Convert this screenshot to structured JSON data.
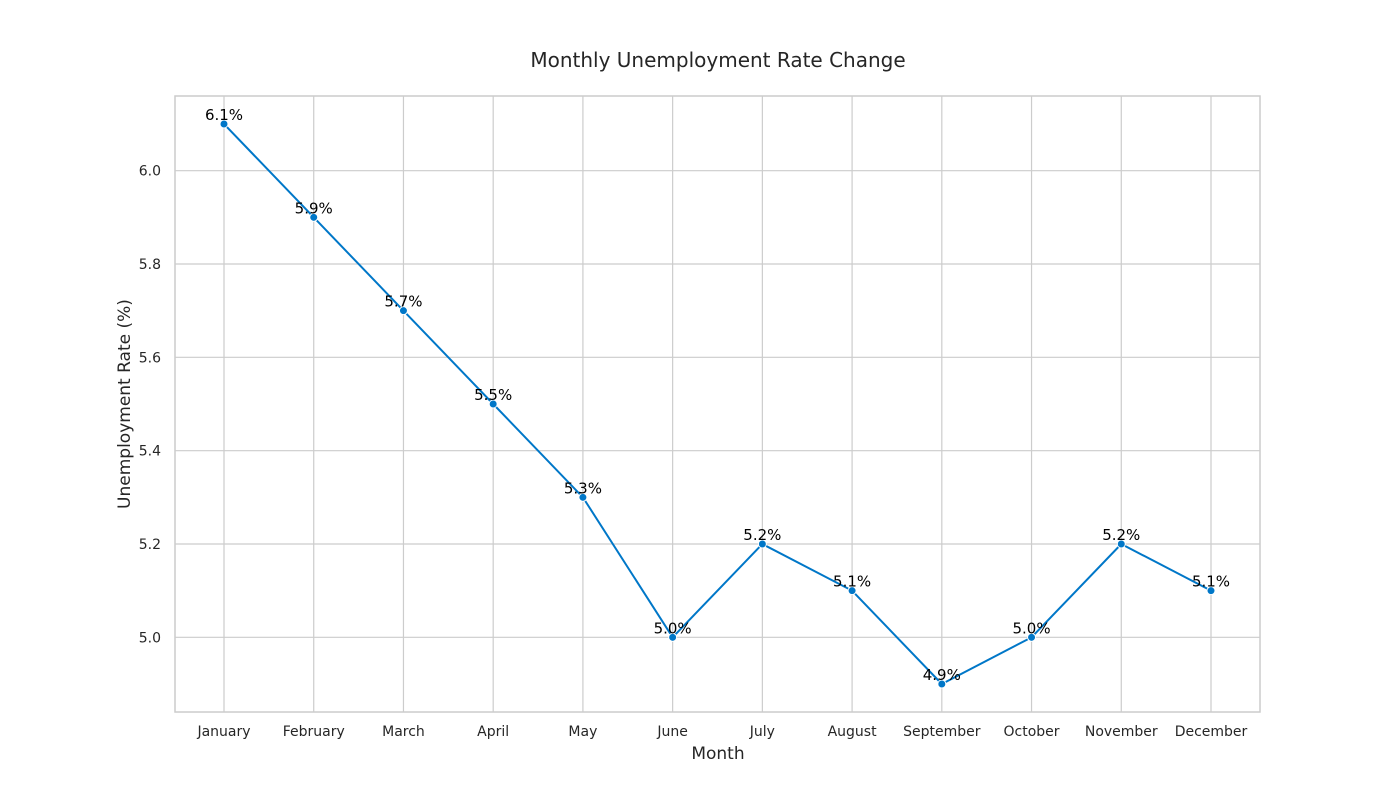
{
  "chart_data": {
    "type": "line",
    "title": "Monthly Unemployment Rate Change",
    "xlabel": "Month",
    "ylabel": "Unemployment Rate (%)",
    "categories": [
      "January",
      "February",
      "March",
      "April",
      "May",
      "June",
      "July",
      "August",
      "September",
      "October",
      "November",
      "December"
    ],
    "values": [
      6.1,
      5.9,
      5.7,
      5.5,
      5.3,
      5.0,
      5.2,
      5.1,
      4.9,
      5.0,
      5.2,
      5.1
    ],
    "data_labels": [
      "6.1%",
      "5.9%",
      "5.7%",
      "5.5%",
      "5.3%",
      "5.0%",
      "5.2%",
      "5.1%",
      "4.9%",
      "5.0%",
      "5.2%",
      "5.1%"
    ],
    "y_ticks": [
      5.0,
      5.2,
      5.4,
      5.6,
      5.8,
      6.0
    ],
    "y_tick_labels": [
      "5.0",
      "5.2",
      "5.4",
      "5.6",
      "5.8",
      "6.0"
    ],
    "ylim": [
      4.84,
      6.16
    ],
    "grid": true,
    "line_color": "#0077c8",
    "marker": "circle"
  }
}
